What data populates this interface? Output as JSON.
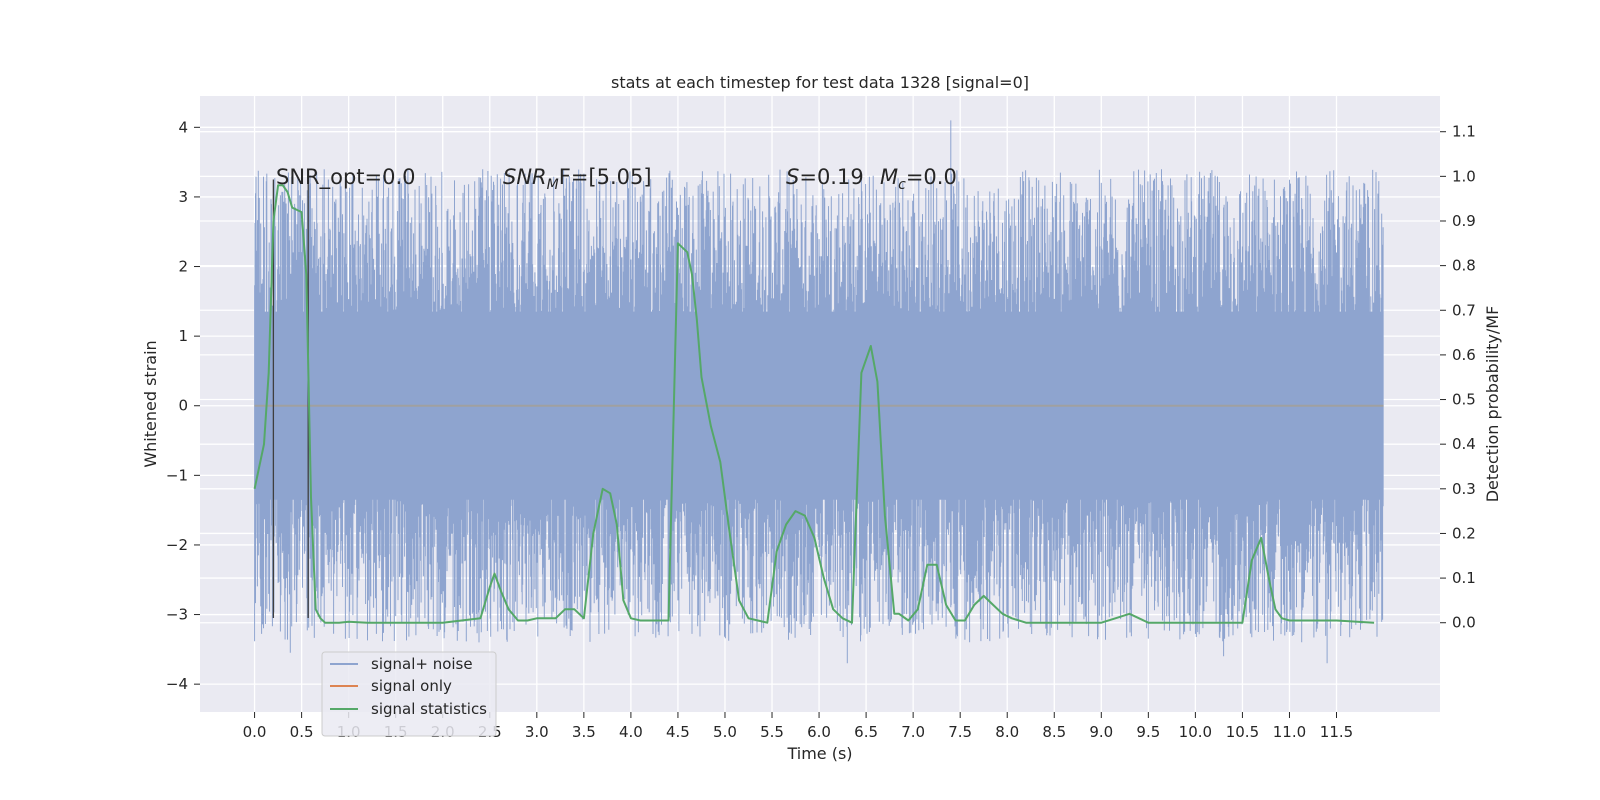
{
  "chart_data": {
    "type": "line",
    "title": "stats at each timestep for test data 1328 [signal=0]",
    "xlabel": "Time (s)",
    "ylabel": "Whitened strain",
    "ylabel_right": "Detection probability/MF",
    "xlim": [
      -0.58,
      12.6
    ],
    "ylim": [
      -4.4,
      4.45
    ],
    "ylim_right": [
      -0.2,
      1.18
    ],
    "x_ticks": [
      "0.0",
      "0.5",
      "1.0",
      "1.5",
      "2.0",
      "2.5",
      "3.0",
      "3.5",
      "4.0",
      "4.5",
      "5.0",
      "5.5",
      "6.0",
      "6.5",
      "7.0",
      "7.5",
      "8.0",
      "8.5",
      "9.0",
      "9.5",
      "10.0",
      "10.5",
      "11.0",
      "11.5"
    ],
    "y_ticks": [
      "4",
      "3",
      "2",
      "1",
      "0",
      "−1",
      "−2",
      "−3",
      "−4"
    ],
    "y_ticks_right": [
      "1.1",
      "1.0",
      "0.9",
      "0.8",
      "0.7",
      "0.6",
      "0.5",
      "0.4",
      "0.3",
      "0.2",
      "0.1",
      "0.0"
    ],
    "grid": true,
    "legend_position": "lower-left",
    "series": [
      {
        "name": "signal+ noise",
        "color": "#8ea4cf",
        "description": "dense noise time series between approximately -4 and 4",
        "x_range": [
          0.0,
          12.0
        ],
        "envelope_typical": [
          -2.4,
          2.5
        ],
        "peaks": [
          [
            7.4,
            4.1
          ],
          [
            6.3,
            -3.7
          ],
          [
            0.38,
            -3.55
          ],
          [
            11.4,
            -3.7
          ],
          [
            10.3,
            -3.6
          ]
        ]
      },
      {
        "name": "signal only",
        "color": "#dd8452",
        "x": [
          0.0,
          12.0
        ],
        "values": [
          0.0,
          0.0
        ]
      },
      {
        "name": "signal statistics",
        "color": "#55a868",
        "axis": "right",
        "x": [
          0.0,
          0.1,
          0.15,
          0.2,
          0.25,
          0.3,
          0.35,
          0.4,
          0.5,
          0.55,
          0.6,
          0.65,
          0.7,
          0.75,
          0.8,
          0.9,
          1.0,
          1.1,
          1.2,
          1.3,
          1.5,
          2.0,
          2.4,
          2.5,
          2.55,
          2.62,
          2.7,
          2.8,
          2.9,
          3.0,
          3.2,
          3.3,
          3.4,
          3.5,
          3.6,
          3.7,
          3.78,
          3.85,
          3.92,
          4.0,
          4.1,
          4.2,
          4.4,
          4.5,
          4.6,
          4.65,
          4.7,
          4.75,
          4.85,
          4.95,
          5.05,
          5.15,
          5.25,
          5.35,
          5.45,
          5.55,
          5.65,
          5.75,
          5.85,
          5.95,
          6.05,
          6.15,
          6.25,
          6.35,
          6.45,
          6.55,
          6.62,
          6.7,
          6.8,
          6.85,
          6.95,
          7.05,
          7.15,
          7.25,
          7.35,
          7.45,
          7.55,
          7.65,
          7.75,
          7.85,
          7.95,
          8.05,
          8.2,
          8.5,
          9.0,
          9.15,
          9.3,
          9.5,
          10.0,
          10.5,
          10.6,
          10.7,
          10.78,
          10.85,
          10.92,
          11.0,
          11.5,
          11.9
        ],
        "values": [
          0.3,
          0.4,
          0.56,
          0.9,
          0.98,
          0.98,
          0.965,
          0.93,
          0.92,
          0.78,
          0.28,
          0.03,
          0.01,
          0.0,
          0.0,
          0.0,
          0.002,
          0.001,
          0.0,
          0.0,
          0.0,
          0.0,
          0.01,
          0.08,
          0.11,
          0.07,
          0.03,
          0.005,
          0.005,
          0.01,
          0.01,
          0.03,
          0.03,
          0.01,
          0.2,
          0.3,
          0.29,
          0.22,
          0.05,
          0.01,
          0.005,
          0.005,
          0.005,
          0.85,
          0.83,
          0.78,
          0.68,
          0.55,
          0.44,
          0.36,
          0.2,
          0.05,
          0.01,
          0.005,
          0.0,
          0.16,
          0.22,
          0.25,
          0.24,
          0.19,
          0.1,
          0.03,
          0.01,
          0.0,
          0.56,
          0.62,
          0.54,
          0.24,
          0.02,
          0.02,
          0.005,
          0.03,
          0.13,
          0.13,
          0.04,
          0.005,
          0.005,
          0.04,
          0.06,
          0.04,
          0.02,
          0.01,
          0.0,
          0.0,
          0.0,
          0.01,
          0.02,
          0.0,
          0.0,
          0.0,
          0.14,
          0.19,
          0.1,
          0.03,
          0.01,
          0.005,
          0.005,
          0.0
        ]
      }
    ],
    "vertical_lines": [
      {
        "x": 0.2,
        "color": "#3f3f3f"
      },
      {
        "x": 0.57,
        "color": "#3f3f3f"
      }
    ],
    "annotations": [
      {
        "text": "SNR_opt=0.0",
        "x": 0.2,
        "y": 3.2
      },
      {
        "text_main": "SNR",
        "text_sub": "M",
        "text_tail": "F=[5.05]",
        "x": 2.6,
        "y": 3.2
      },
      {
        "text_main": "S",
        "text_tail": "=0.19",
        "x": 5.6,
        "y": 3.2
      },
      {
        "text_main": "M",
        "text_sub": "c",
        "text_tail": "=0.0",
        "x": 6.6,
        "y": 3.2
      }
    ]
  }
}
